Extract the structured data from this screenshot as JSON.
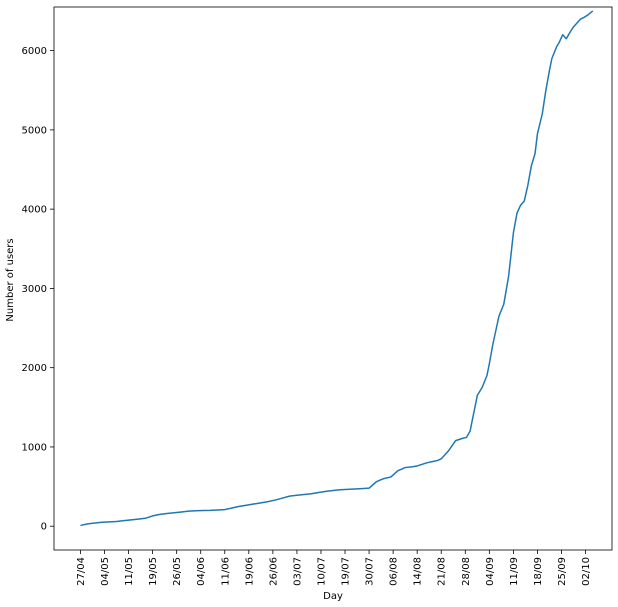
{
  "chart_data": {
    "type": "line",
    "title": "",
    "xlabel": "Day",
    "ylabel": "Number of users",
    "xticks": [
      "27/04",
      "04/05",
      "11/05",
      "19/05",
      "26/05",
      "04/06",
      "11/06",
      "19/06",
      "26/06",
      "03/07",
      "10/07",
      "19/07",
      "30/07",
      "06/08",
      "14/08",
      "21/08",
      "28/08",
      "04/09",
      "11/09",
      "18/09",
      "25/09",
      "02/10"
    ],
    "yticks": [
      0,
      1000,
      2000,
      3000,
      4000,
      5000,
      6000
    ],
    "xlim": [
      -1.1,
      22.1
    ],
    "ylim": [
      -300,
      6550
    ],
    "grid": false,
    "colors": {
      "line": "#1f77b4"
    },
    "series": [
      {
        "x": [
          0.0,
          0.3,
          0.6,
          0.9,
          1.2,
          1.5,
          1.8,
          2.1,
          2.4,
          2.7,
          3.0,
          3.3,
          3.6,
          3.9,
          4.2,
          4.5,
          4.8,
          5.1,
          5.4,
          5.7,
          6.0,
          6.3,
          6.6,
          6.9,
          7.2,
          7.5,
          7.8,
          8.1,
          8.4,
          8.7,
          9.0,
          9.3,
          9.6,
          9.9,
          10.2,
          10.5,
          10.8,
          11.1,
          11.4,
          11.7,
          12.0,
          12.15,
          12.3,
          12.45,
          12.6,
          12.9,
          13.2,
          13.35,
          13.5,
          13.8,
          14.0,
          14.4,
          14.7,
          14.85,
          15.0,
          15.3,
          15.6,
          15.9,
          16.05,
          16.2,
          16.5,
          16.7,
          16.9,
          17.0,
          17.15,
          17.4,
          17.6,
          17.8,
          18.0,
          18.15,
          18.3,
          18.45,
          18.6,
          18.75,
          18.9,
          19.0,
          19.2,
          19.35,
          19.5,
          19.6,
          19.8,
          19.9,
          20.05,
          20.2,
          20.35,
          20.5,
          20.65,
          20.8,
          20.95,
          21.1,
          21.3
        ],
        "y": [
          10,
          30,
          40,
          50,
          55,
          60,
          70,
          80,
          90,
          100,
          130,
          150,
          160,
          170,
          180,
          190,
          195,
          198,
          200,
          205,
          210,
          230,
          250,
          265,
          280,
          295,
          310,
          330,
          355,
          380,
          390,
          400,
          410,
          425,
          440,
          450,
          460,
          465,
          470,
          475,
          480,
          520,
          560,
          580,
          600,
          620,
          700,
          720,
          740,
          750,
          760,
          800,
          820,
          830,
          850,
          950,
          1080,
          1110,
          1120,
          1200,
          1650,
          1750,
          1900,
          2050,
          2300,
          2650,
          2800,
          3150,
          3700,
          3950,
          4050,
          4100,
          4300,
          4550,
          4700,
          4950,
          5200,
          5500,
          5750,
          5900,
          6050,
          6100,
          6200,
          6150,
          6230,
          6300,
          6350,
          6400,
          6420,
          6450,
          6500
        ]
      }
    ]
  }
}
